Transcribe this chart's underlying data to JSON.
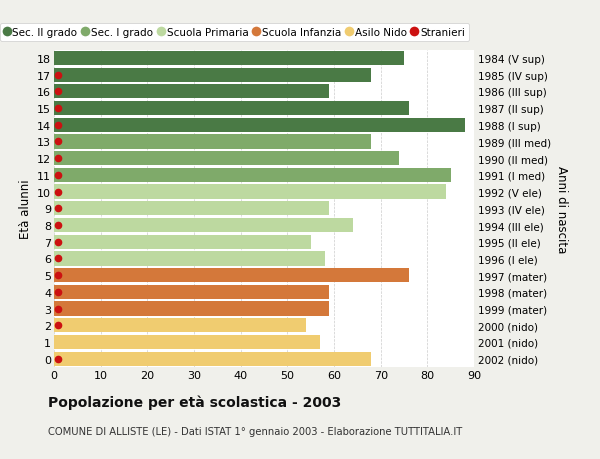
{
  "ages": [
    18,
    17,
    16,
    15,
    14,
    13,
    12,
    11,
    10,
    9,
    8,
    7,
    6,
    5,
    4,
    3,
    2,
    1,
    0
  ],
  "years": [
    "1984 (V sup)",
    "1985 (IV sup)",
    "1986 (III sup)",
    "1987 (II sup)",
    "1988 (I sup)",
    "1989 (III med)",
    "1990 (II med)",
    "1991 (I med)",
    "1992 (V ele)",
    "1993 (IV ele)",
    "1994 (III ele)",
    "1995 (II ele)",
    "1996 (I ele)",
    "1997 (mater)",
    "1998 (mater)",
    "1999 (mater)",
    "2000 (nido)",
    "2001 (nido)",
    "2002 (nido)"
  ],
  "values": [
    75,
    68,
    59,
    76,
    88,
    68,
    74,
    85,
    84,
    59,
    64,
    55,
    58,
    76,
    59,
    59,
    54,
    57,
    68
  ],
  "stranieri": [
    0,
    1,
    1,
    1,
    1,
    1,
    1,
    1,
    1,
    1,
    1,
    1,
    1,
    1,
    1,
    1,
    1,
    0,
    1
  ],
  "bar_colors": {
    "Sec. II grado": "#4a7a45",
    "Sec. I grado": "#7faa6a",
    "Scuola Primaria": "#bdd9a0",
    "Scuola Infanzia": "#d4783a",
    "Asilo Nido": "#f0cc70",
    "Stranieri": "#cc1111"
  },
  "age_category": {
    "18": "Sec. II grado",
    "17": "Sec. II grado",
    "16": "Sec. II grado",
    "15": "Sec. II grado",
    "14": "Sec. II grado",
    "13": "Sec. I grado",
    "12": "Sec. I grado",
    "11": "Sec. I grado",
    "10": "Scuola Primaria",
    "9": "Scuola Primaria",
    "8": "Scuola Primaria",
    "7": "Scuola Primaria",
    "6": "Scuola Primaria",
    "5": "Scuola Infanzia",
    "4": "Scuola Infanzia",
    "3": "Scuola Infanzia",
    "2": "Asilo Nido",
    "1": "Asilo Nido",
    "0": "Asilo Nido"
  },
  "title": "Popolazione per età scolastica - 2003",
  "subtitle": "COMUNE DI ALLISTE (LE) - Dati ISTAT 1° gennaio 2003 - Elaborazione TUTTITALIA.IT",
  "ylabel_left": "Età alunni",
  "ylabel_right": "Anni di nascita",
  "xlim": [
    0,
    90
  ],
  "xticks": [
    0,
    10,
    20,
    30,
    40,
    50,
    60,
    70,
    80,
    90
  ],
  "background_color": "#f0f0eb",
  "plot_bg": "#ffffff"
}
